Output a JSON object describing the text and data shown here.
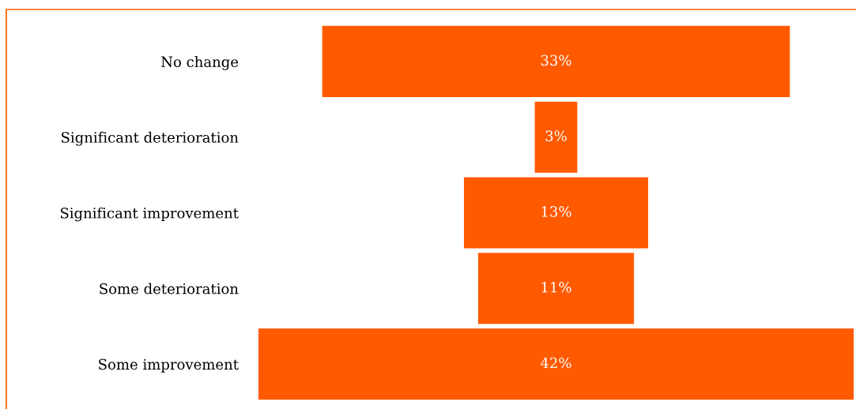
{
  "chart_data": {
    "type": "other",
    "categories": [
      "No change",
      "Significant deterioration",
      "Significant improvement",
      "Some deterioration",
      "Some improvement"
    ],
    "values": [
      33,
      3,
      13,
      11,
      42
    ],
    "value_labels": [
      "33%",
      "3%",
      "13%",
      "11%",
      "42%"
    ],
    "color": "#ff5a00"
  }
}
